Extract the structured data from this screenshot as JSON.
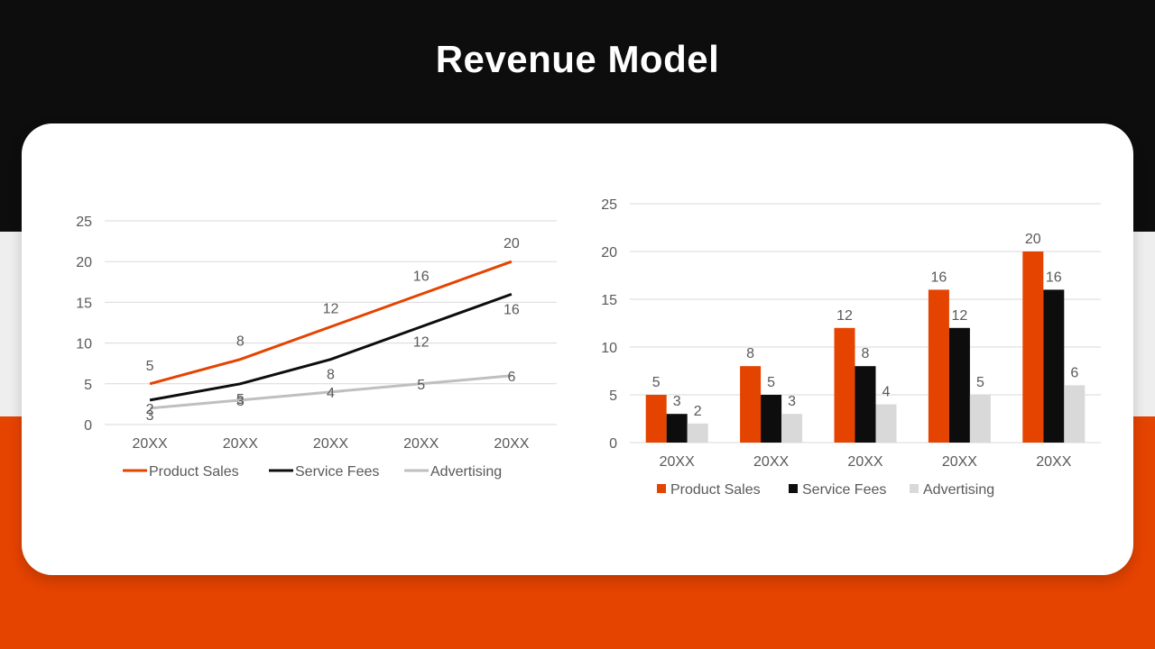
{
  "title": "Revenue Model",
  "colors": {
    "accent": "#e54300",
    "dark": "#0d0d0d",
    "light_band": "#eeeeee",
    "line_advertising": "#bfbfbf",
    "bar_advertising": "#d9d9d9",
    "gridline": "#d9d9d9",
    "text": "#595959"
  },
  "chart_data": [
    {
      "type": "line",
      "categories": [
        "20XX",
        "20XX",
        "20XX",
        "20XX",
        "20XX"
      ],
      "ylim": [
        0,
        25
      ],
      "yticks": [
        0,
        5,
        10,
        15,
        20,
        25
      ],
      "grid": true,
      "legend": "bottom",
      "data_labels": true,
      "series": [
        {
          "name": "Product Sales",
          "values": [
            5,
            8,
            12,
            16,
            20
          ],
          "color": "#e54300"
        },
        {
          "name": "Service Fees",
          "values": [
            3,
            5,
            8,
            12,
            16
          ],
          "color": "#0d0d0d"
        },
        {
          "name": "Advertising",
          "values": [
            2,
            3,
            4,
            5,
            6
          ],
          "color": "#bfbfbf"
        }
      ]
    },
    {
      "type": "bar",
      "categories": [
        "20XX",
        "20XX",
        "20XX",
        "20XX",
        "20XX"
      ],
      "ylim": [
        0,
        25
      ],
      "yticks": [
        0,
        5,
        10,
        15,
        20,
        25
      ],
      "grid": true,
      "legend": "bottom",
      "data_labels": true,
      "series": [
        {
          "name": "Product Sales",
          "values": [
            5,
            8,
            12,
            16,
            20
          ],
          "color": "#e54300"
        },
        {
          "name": "Service Fees",
          "values": [
            3,
            5,
            8,
            12,
            16
          ],
          "color": "#0d0d0d"
        },
        {
          "name": "Advertising",
          "values": [
            2,
            3,
            4,
            5,
            6
          ],
          "color": "#d9d9d9"
        }
      ]
    }
  ]
}
